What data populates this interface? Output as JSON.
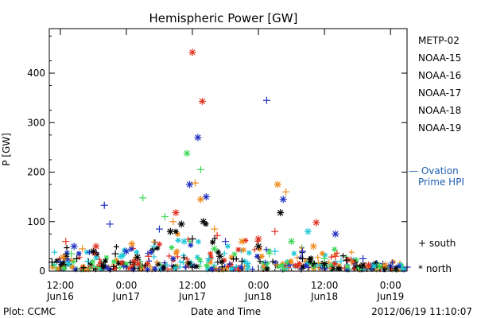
{
  "chart_data": {
    "type": "scatter",
    "title": "Hemispheric Power [GW]",
    "xlabel": "Date and Time",
    "ylabel": "P [GW]",
    "ylim": [
      0,
      490
    ],
    "yticks": [
      0,
      100,
      200,
      300,
      400
    ],
    "xlim_hours": [
      -2,
      63
    ],
    "xticks": [
      {
        "time": "12:00",
        "date": "Jun16",
        "hour": 0
      },
      {
        "time": "0:00",
        "date": "Jun17",
        "hour": 12
      },
      {
        "time": "12:00",
        "date": "Jun17",
        "hour": 24
      },
      {
        "time": "0:00",
        "date": "Jun18",
        "hour": 36
      },
      {
        "time": "12:00",
        "date": "Jun18",
        "hour": 48
      },
      {
        "time": "0:00",
        "date": "Jun19",
        "hour": 60
      }
    ],
    "legend": {
      "placement": "right",
      "satellites": [
        {
          "name": "METP-02",
          "color": "#000000"
        },
        {
          "name": "NOAA-15",
          "color": "#1f2fbf"
        },
        {
          "name": "NOAA-16",
          "color": "#1fc8d8"
        },
        {
          "name": "NOAA-17",
          "color": "#3ed858"
        },
        {
          "name": "NOAA-18",
          "color": "#f08a1a"
        },
        {
          "name": "NOAA-19",
          "color": "#e0301e"
        }
      ],
      "ovation_line1": "— Ovation",
      "ovation_line2": "Prime HPI",
      "ovation_color": "#1f5faf",
      "south_label": "+ south",
      "north_label": "* north"
    },
    "series": [
      {
        "name": "METP-02",
        "color": "#000000",
        "points": [
          {
            "t": -1.5,
            "v": 18,
            "m": "+"
          },
          {
            "t": 1,
            "v": 30,
            "m": "*"
          },
          {
            "t": 3,
            "v": 25,
            "m": "+"
          },
          {
            "t": 6,
            "v": 40,
            "m": "*"
          },
          {
            "t": 10,
            "v": 35,
            "m": "+"
          },
          {
            "t": 14,
            "v": 28,
            "m": "*"
          },
          {
            "t": 17,
            "v": 45,
            "m": "+"
          },
          {
            "t": 20,
            "v": 80,
            "m": "*"
          },
          {
            "t": 22,
            "v": 95,
            "m": "*"
          },
          {
            "t": 24,
            "v": 65,
            "m": "+"
          },
          {
            "t": 26,
            "v": 100,
            "m": "*"
          },
          {
            "t": 29,
            "v": 30,
            "m": "*"
          },
          {
            "t": 33,
            "v": 20,
            "m": "+"
          },
          {
            "t": 36,
            "v": 50,
            "m": "*"
          },
          {
            "t": 40,
            "v": 118,
            "m": "*"
          },
          {
            "t": 44,
            "v": 25,
            "m": "+"
          },
          {
            "t": 48,
            "v": 15,
            "m": "*"
          },
          {
            "t": 52,
            "v": 22,
            "m": "+"
          },
          {
            "t": 55,
            "v": 12,
            "m": "*"
          },
          {
            "t": 58,
            "v": 8,
            "m": "+"
          },
          {
            "t": 61,
            "v": 5,
            "m": "*"
          }
        ]
      },
      {
        "name": "NOAA-15",
        "color": "#1f2fbf",
        "points": [
          {
            "t": 0,
            "v": 20,
            "m": "+"
          },
          {
            "t": 2.5,
            "v": 50,
            "m": "*"
          },
          {
            "t": 8,
            "v": 133,
            "m": "+"
          },
          {
            "t": 9,
            "v": 95,
            "m": "+"
          },
          {
            "t": 12,
            "v": 40,
            "m": "*"
          },
          {
            "t": 18,
            "v": 85,
            "m": "+"
          },
          {
            "t": 23.5,
            "v": 175,
            "m": "*"
          },
          {
            "t": 25,
            "v": 270,
            "m": "*"
          },
          {
            "t": 26.5,
            "v": 150,
            "m": "*"
          },
          {
            "t": 30,
            "v": 60,
            "m": "+"
          },
          {
            "t": 37.5,
            "v": 345,
            "m": "+"
          },
          {
            "t": 40.5,
            "v": 145,
            "m": "*"
          },
          {
            "t": 44,
            "v": 40,
            "m": "+"
          },
          {
            "t": 50,
            "v": 75,
            "m": "*"
          },
          {
            "t": 55,
            "v": 25,
            "m": "+"
          },
          {
            "t": 60,
            "v": 10,
            "m": "*"
          },
          {
            "t": 63,
            "v": 8,
            "m": "+"
          }
        ]
      },
      {
        "name": "NOAA-16",
        "color": "#1fc8d8",
        "points": [
          {
            "t": 1.5,
            "v": 15,
            "m": "*"
          },
          {
            "t": 5,
            "v": 20,
            "m": "+"
          },
          {
            "t": 11,
            "v": 30,
            "m": "*"
          },
          {
            "t": 17,
            "v": 50,
            "m": "+"
          },
          {
            "t": 22.5,
            "v": 60,
            "m": "*"
          },
          {
            "t": 27,
            "v": 25,
            "m": "+"
          },
          {
            "t": 34,
            "v": 15,
            "m": "*"
          },
          {
            "t": 39,
            "v": 40,
            "m": "+"
          },
          {
            "t": 45,
            "v": 80,
            "m": "*"
          },
          {
            "t": 51,
            "v": 20,
            "m": "+"
          },
          {
            "t": 57,
            "v": 10,
            "m": "*"
          },
          {
            "t": 62,
            "v": 5,
            "m": "+"
          }
        ]
      },
      {
        "name": "NOAA-17",
        "color": "#3ed858",
        "points": [
          {
            "t": 2,
            "v": 35,
            "m": "+"
          },
          {
            "t": 15,
            "v": 148,
            "m": "+"
          },
          {
            "t": 19,
            "v": 110,
            "m": "+"
          },
          {
            "t": 23,
            "v": 238,
            "m": "*"
          },
          {
            "t": 25.5,
            "v": 205,
            "m": "+"
          },
          {
            "t": 28,
            "v": 45,
            "m": "*"
          },
          {
            "t": 38,
            "v": 35,
            "m": "+"
          },
          {
            "t": 42,
            "v": 60,
            "m": "*"
          },
          {
            "t": 48,
            "v": 25,
            "m": "+"
          },
          {
            "t": 58,
            "v": 10,
            "m": "*"
          }
        ]
      },
      {
        "name": "NOAA-18",
        "color": "#f08a1a",
        "points": [
          {
            "t": 0.5,
            "v": 28,
            "m": "*"
          },
          {
            "t": 4,
            "v": 45,
            "m": "+"
          },
          {
            "t": 13,
            "v": 55,
            "m": "*"
          },
          {
            "t": 20.5,
            "v": 100,
            "m": "+"
          },
          {
            "t": 24.5,
            "v": 178,
            "m": "+"
          },
          {
            "t": 25.5,
            "v": 145,
            "m": "*"
          },
          {
            "t": 28,
            "v": 85,
            "m": "+"
          },
          {
            "t": 33,
            "v": 60,
            "m": "*"
          },
          {
            "t": 39.5,
            "v": 175,
            "m": "*"
          },
          {
            "t": 41,
            "v": 160,
            "m": "+"
          },
          {
            "t": 46,
            "v": 50,
            "m": "*"
          },
          {
            "t": 53,
            "v": 18,
            "m": "+"
          },
          {
            "t": 59,
            "v": 12,
            "m": "*"
          }
        ]
      },
      {
        "name": "NOAA-19",
        "color": "#e0301e",
        "points": [
          {
            "t": 1,
            "v": 60,
            "m": "+"
          },
          {
            "t": 6.5,
            "v": 50,
            "m": "*"
          },
          {
            "t": 16,
            "v": 30,
            "m": "+"
          },
          {
            "t": 21,
            "v": 118,
            "m": "*"
          },
          {
            "t": 24,
            "v": 442,
            "m": "*"
          },
          {
            "t": 25.8,
            "v": 343,
            "m": "*"
          },
          {
            "t": 28.5,
            "v": 72,
            "m": "+"
          },
          {
            "t": 36,
            "v": 65,
            "m": "*"
          },
          {
            "t": 39,
            "v": 80,
            "m": "+"
          },
          {
            "t": 46.5,
            "v": 98,
            "m": "*"
          },
          {
            "t": 50,
            "v": 30,
            "m": "+"
          },
          {
            "t": 56,
            "v": 12,
            "m": "*"
          }
        ]
      }
    ]
  },
  "footer": {
    "plot_credit": "Plot: CCMC",
    "timestamp": "2012/06/19 11:10:07"
  }
}
